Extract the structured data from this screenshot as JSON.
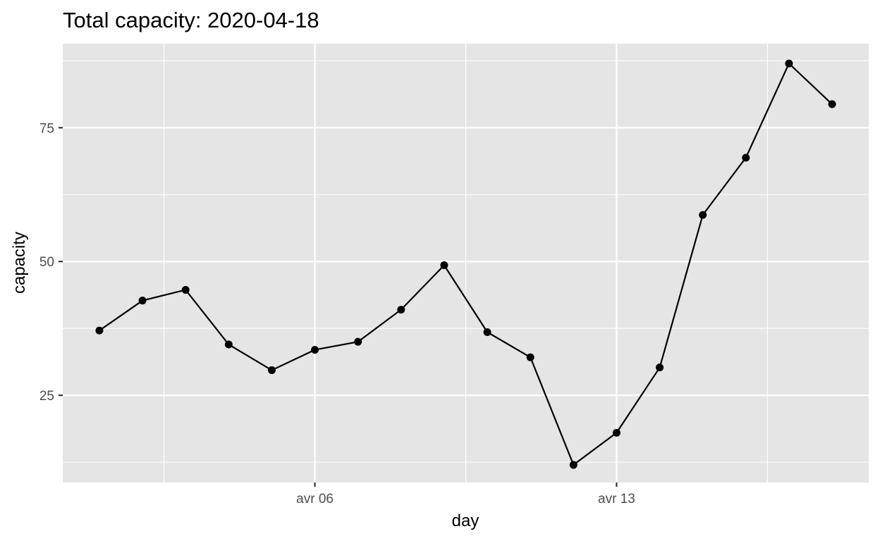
{
  "chart_data": {
    "type": "line",
    "title": "Total capacity: 2020-04-18",
    "xlabel": "day",
    "ylabel": "capacity",
    "x_tick_labels": [
      "avr 06",
      "avr 13"
    ],
    "y_tick_labels": [
      "25",
      "50",
      "75"
    ],
    "ylim": [
      8.7,
      90.7
    ],
    "grid": true,
    "colors": {
      "panel": "#e5e5e5",
      "grid": "#ffffff",
      "series": "#000000"
    },
    "series": [
      {
        "x": [
          "2020-04-01",
          "2020-04-02",
          "2020-04-03",
          "2020-04-04",
          "2020-04-05",
          "2020-04-06",
          "2020-04-07",
          "2020-04-08",
          "2020-04-09",
          "2020-04-10",
          "2020-04-11",
          "2020-04-12",
          "2020-04-13",
          "2020-04-14",
          "2020-04-15",
          "2020-04-16",
          "2020-04-17",
          "2020-04-18"
        ],
        "values": [
          37.1,
          42.7,
          44.7,
          34.5,
          29.7,
          33.5,
          35.0,
          41.0,
          49.3,
          36.8,
          32.1,
          12.0,
          18.0,
          30.2,
          58.7,
          69.4,
          87.0,
          79.4
        ]
      }
    ]
  }
}
